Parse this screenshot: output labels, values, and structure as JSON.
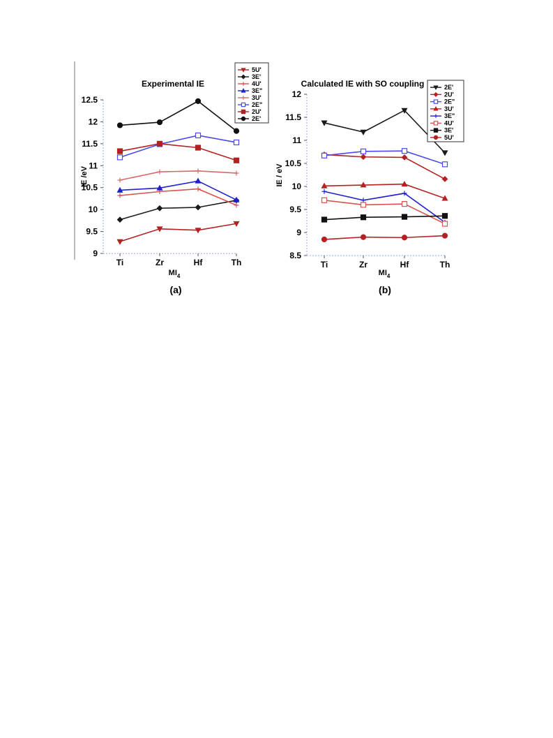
{
  "chart_data": [
    {
      "panel": "(a)",
      "type": "line",
      "title": "Experimental IE",
      "xlabel": "MI",
      "xlabel_sub": "4",
      "ylabel": "IE /eV",
      "categories": [
        "Ti",
        "Zr",
        "Hf",
        "Th"
      ],
      "ylim": [
        9,
        12.5
      ],
      "yticks": [
        "9",
        "9.5",
        "10",
        "10.5",
        "11",
        "11.5",
        "12",
        "12.5"
      ],
      "legend_position": "right",
      "series": [
        {
          "name": "5U'",
          "color": "#b22222",
          "marker": "triangle-down",
          "filled": true,
          "values": [
            9.27,
            9.56,
            9.53,
            9.68
          ]
        },
        {
          "name": "3E'",
          "color": "#1a1a1a",
          "marker": "diamond",
          "filled": true,
          "values": [
            9.77,
            10.03,
            10.05,
            10.21
          ]
        },
        {
          "name": "4U'",
          "color": "#d9534f",
          "marker": "plus",
          "filled": false,
          "values": [
            10.32,
            10.41,
            10.47,
            10.1
          ]
        },
        {
          "name": "3E\"",
          "color": "#2020d0",
          "marker": "triangle-up",
          "filled": true,
          "values": [
            10.44,
            10.49,
            10.65,
            10.22
          ]
        },
        {
          "name": "3U'",
          "color": "#d46a6a",
          "marker": "plus",
          "filled": false,
          "values": [
            10.67,
            10.86,
            10.88,
            10.83
          ]
        },
        {
          "name": "2E\"",
          "color": "#4a4af0",
          "marker": "square-open",
          "filled": false,
          "values": [
            11.19,
            11.49,
            11.69,
            11.53
          ]
        },
        {
          "name": "2U'",
          "color": "#b22222",
          "marker": "square",
          "filled": true,
          "values": [
            11.33,
            11.5,
            11.41,
            11.12
          ]
        },
        {
          "name": "2E'",
          "color": "#111111",
          "marker": "circle",
          "filled": true,
          "values": [
            11.92,
            11.99,
            12.47,
            11.79
          ]
        }
      ]
    },
    {
      "panel": "(b)",
      "type": "line",
      "title": "Calculated IE with SO coupling",
      "xlabel": "MI",
      "xlabel_sub": "4",
      "ylabel": "IE / eV",
      "categories": [
        "Ti",
        "Zr",
        "Hf",
        "Th"
      ],
      "ylim": [
        8.5,
        12
      ],
      "yticks": [
        "8.5",
        "9",
        "9.5",
        "10",
        "10.5",
        "11",
        "11.5",
        "12"
      ],
      "legend_position": "right",
      "series": [
        {
          "name": "2E'",
          "color": "#1a1a1a",
          "marker": "triangle-down",
          "filled": true,
          "values": [
            11.38,
            11.18,
            11.65,
            10.73
          ]
        },
        {
          "name": "2U'",
          "color": "#b22222",
          "marker": "diamond",
          "filled": true,
          "values": [
            10.69,
            10.64,
            10.63,
            10.16
          ]
        },
        {
          "name": "2E\"",
          "color": "#4a4af0",
          "marker": "square-open",
          "filled": false,
          "values": [
            10.67,
            10.76,
            10.77,
            10.48
          ]
        },
        {
          "name": "3U'",
          "color": "#b22222",
          "marker": "triangle-up",
          "filled": true,
          "values": [
            10.01,
            10.03,
            10.05,
            9.74
          ]
        },
        {
          "name": "3E\"",
          "color": "#2020d0",
          "marker": "plus",
          "filled": false,
          "values": [
            9.89,
            9.7,
            9.85,
            9.22
          ]
        },
        {
          "name": "4U'",
          "color": "#d9534f",
          "marker": "square-open",
          "filled": false,
          "values": [
            9.7,
            9.6,
            9.62,
            9.19
          ]
        },
        {
          "name": "3E'",
          "color": "#111111",
          "marker": "square",
          "filled": true,
          "values": [
            9.28,
            9.33,
            9.34,
            9.36
          ]
        },
        {
          "name": "5U'",
          "color": "#b22222",
          "marker": "circle",
          "filled": true,
          "values": [
            8.85,
            8.9,
            8.89,
            8.93
          ]
        }
      ]
    }
  ]
}
